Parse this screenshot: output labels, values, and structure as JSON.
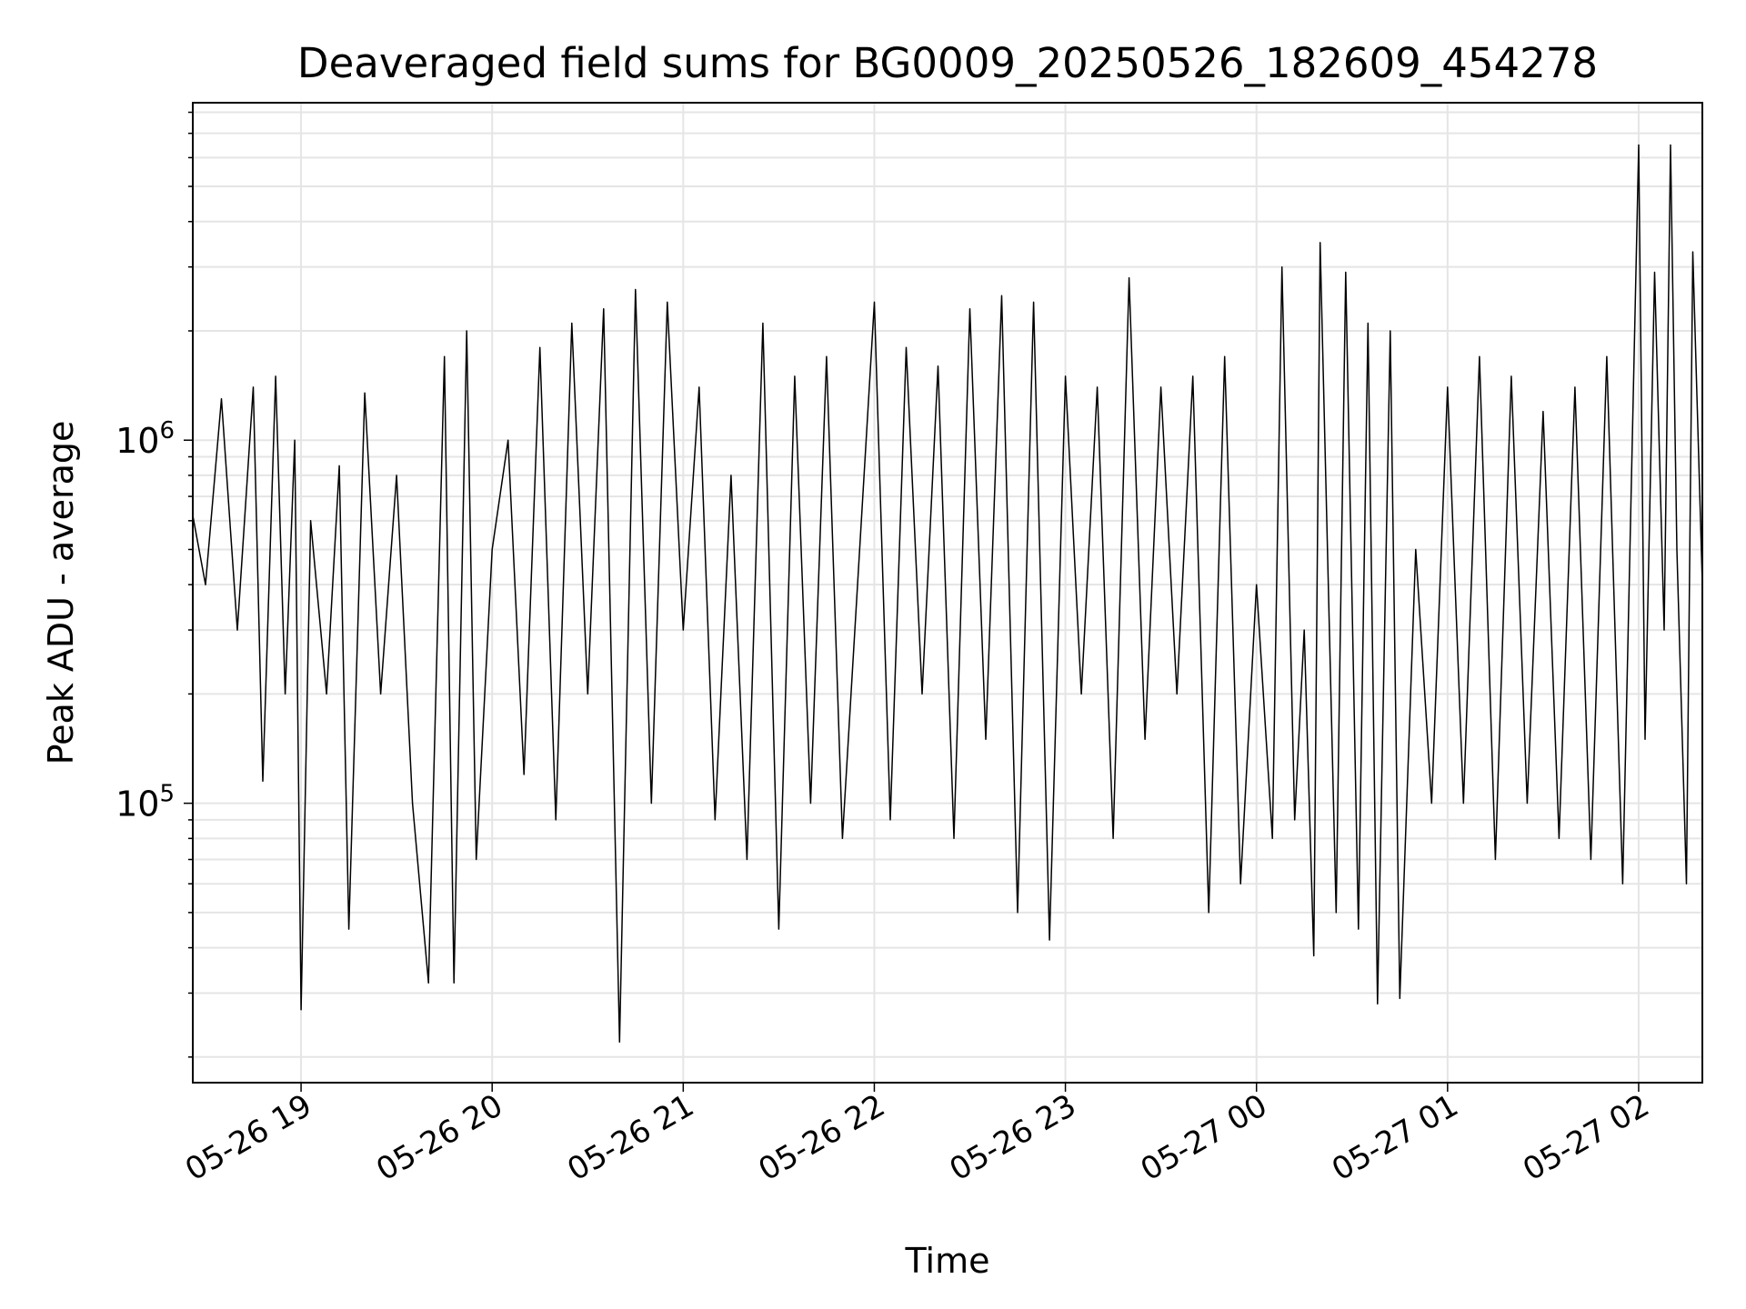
{
  "chart_data": {
    "type": "line",
    "title": "Deaveraged field sums for BG0009_20250526_182609_454278",
    "xlabel": "Time",
    "ylabel": "Peak ADU - average",
    "x_range": [
      "2025-05-26 18:26",
      "2025-05-27 02:20"
    ],
    "x_ticks": [
      {
        "value": "2025-05-26 19:00",
        "label": "05-26 19"
      },
      {
        "value": "2025-05-26 20:00",
        "label": "05-26 20"
      },
      {
        "value": "2025-05-26 21:00",
        "label": "05-26 21"
      },
      {
        "value": "2025-05-26 22:00",
        "label": "05-26 22"
      },
      {
        "value": "2025-05-26 23:00",
        "label": "05-26 23"
      },
      {
        "value": "2025-05-27 00:00",
        "label": "05-27 00"
      },
      {
        "value": "2025-05-27 01:00",
        "label": "05-27 01"
      },
      {
        "value": "2025-05-27 02:00",
        "label": "05-27 02"
      }
    ],
    "y_scale": "log",
    "ylim": [
      17000,
      8500000
    ],
    "y_major_ticks": [
      {
        "value": 100000,
        "base": "10",
        "exp": "5"
      },
      {
        "value": 1000000,
        "base": "10",
        "exp": "6"
      }
    ],
    "grid": true,
    "line_color": "#000000",
    "grid_color": "#e5e5e5",
    "series": [
      {
        "sampling_note_hidden": false,
        "points": [
          [
            "2025-05-26 18:26",
            620000
          ],
          [
            "2025-05-26 18:30",
            400000
          ],
          [
            "2025-05-26 18:35",
            1300000
          ],
          [
            "2025-05-26 18:40",
            300000
          ],
          [
            "2025-05-26 18:45",
            1400000
          ],
          [
            "2025-05-26 18:48",
            115000
          ],
          [
            "2025-05-26 18:52",
            1500000
          ],
          [
            "2025-05-26 18:55",
            200000
          ],
          [
            "2025-05-26 18:58",
            1000000
          ],
          [
            "2025-05-26 19:00",
            27000
          ],
          [
            "2025-05-26 19:03",
            600000
          ],
          [
            "2025-05-26 19:08",
            200000
          ],
          [
            "2025-05-26 19:12",
            850000
          ],
          [
            "2025-05-26 19:15",
            45000
          ],
          [
            "2025-05-26 19:20",
            1350000
          ],
          [
            "2025-05-26 19:25",
            200000
          ],
          [
            "2025-05-26 19:30",
            800000
          ],
          [
            "2025-05-26 19:35",
            100000
          ],
          [
            "2025-05-26 19:40",
            32000
          ],
          [
            "2025-05-26 19:45",
            1700000
          ],
          [
            "2025-05-26 19:48",
            32000
          ],
          [
            "2025-05-26 19:52",
            2000000
          ],
          [
            "2025-05-26 19:55",
            70000
          ],
          [
            "2025-05-26 20:00",
            500000
          ],
          [
            "2025-05-26 20:05",
            1000000
          ],
          [
            "2025-05-26 20:10",
            120000
          ],
          [
            "2025-05-26 20:15",
            1800000
          ],
          [
            "2025-05-26 20:20",
            90000
          ],
          [
            "2025-05-26 20:25",
            2100000
          ],
          [
            "2025-05-26 20:30",
            200000
          ],
          [
            "2025-05-26 20:35",
            2300000
          ],
          [
            "2025-05-26 20:40",
            22000
          ],
          [
            "2025-05-26 20:45",
            2600000
          ],
          [
            "2025-05-26 20:50",
            100000
          ],
          [
            "2025-05-26 20:55",
            2400000
          ],
          [
            "2025-05-26 21:00",
            300000
          ],
          [
            "2025-05-26 21:05",
            1400000
          ],
          [
            "2025-05-26 21:10",
            90000
          ],
          [
            "2025-05-26 21:15",
            800000
          ],
          [
            "2025-05-26 21:20",
            70000
          ],
          [
            "2025-05-26 21:25",
            2100000
          ],
          [
            "2025-05-26 21:30",
            45000
          ],
          [
            "2025-05-26 21:35",
            1500000
          ],
          [
            "2025-05-26 21:40",
            100000
          ],
          [
            "2025-05-26 21:45",
            1700000
          ],
          [
            "2025-05-26 21:50",
            80000
          ],
          [
            "2025-05-26 22:00",
            2400000
          ],
          [
            "2025-05-26 22:05",
            90000
          ],
          [
            "2025-05-26 22:10",
            1800000
          ],
          [
            "2025-05-26 22:15",
            200000
          ],
          [
            "2025-05-26 22:20",
            1600000
          ],
          [
            "2025-05-26 22:25",
            80000
          ],
          [
            "2025-05-26 22:30",
            2300000
          ],
          [
            "2025-05-26 22:35",
            150000
          ],
          [
            "2025-05-26 22:40",
            2500000
          ],
          [
            "2025-05-26 22:45",
            50000
          ],
          [
            "2025-05-26 22:50",
            2400000
          ],
          [
            "2025-05-26 22:55",
            42000
          ],
          [
            "2025-05-26 23:00",
            1500000
          ],
          [
            "2025-05-26 23:05",
            200000
          ],
          [
            "2025-05-26 23:10",
            1400000
          ],
          [
            "2025-05-26 23:15",
            80000
          ],
          [
            "2025-05-26 23:20",
            2800000
          ],
          [
            "2025-05-26 23:25",
            150000
          ],
          [
            "2025-05-26 23:30",
            1400000
          ],
          [
            "2025-05-26 23:35",
            200000
          ],
          [
            "2025-05-26 23:40",
            1500000
          ],
          [
            "2025-05-26 23:45",
            50000
          ],
          [
            "2025-05-26 23:50",
            1700000
          ],
          [
            "2025-05-26 23:55",
            60000
          ],
          [
            "2025-05-27 00:00",
            400000
          ],
          [
            "2025-05-27 00:05",
            80000
          ],
          [
            "2025-05-27 00:08",
            3000000
          ],
          [
            "2025-05-27 00:12",
            90000
          ],
          [
            "2025-05-27 00:15",
            300000
          ],
          [
            "2025-05-27 00:18",
            38000
          ],
          [
            "2025-05-27 00:20",
            3500000
          ],
          [
            "2025-05-27 00:25",
            50000
          ],
          [
            "2025-05-27 00:28",
            2900000
          ],
          [
            "2025-05-27 00:32",
            45000
          ],
          [
            "2025-05-27 00:35",
            2100000
          ],
          [
            "2025-05-27 00:38",
            28000
          ],
          [
            "2025-05-27 00:42",
            2000000
          ],
          [
            "2025-05-27 00:45",
            29000
          ],
          [
            "2025-05-27 00:50",
            500000
          ],
          [
            "2025-05-27 00:55",
            100000
          ],
          [
            "2025-05-27 01:00",
            1400000
          ],
          [
            "2025-05-27 01:05",
            100000
          ],
          [
            "2025-05-27 01:10",
            1700000
          ],
          [
            "2025-05-27 01:15",
            70000
          ],
          [
            "2025-05-27 01:20",
            1500000
          ],
          [
            "2025-05-27 01:25",
            100000
          ],
          [
            "2025-05-27 01:30",
            1200000
          ],
          [
            "2025-05-27 01:35",
            80000
          ],
          [
            "2025-05-27 01:40",
            1400000
          ],
          [
            "2025-05-27 01:45",
            70000
          ],
          [
            "2025-05-27 01:50",
            1700000
          ],
          [
            "2025-05-27 01:55",
            60000
          ],
          [
            "2025-05-27 02:00",
            6500000
          ],
          [
            "2025-05-27 02:02",
            150000
          ],
          [
            "2025-05-27 02:05",
            2900000
          ],
          [
            "2025-05-27 02:08",
            300000
          ],
          [
            "2025-05-27 02:10",
            6500000
          ],
          [
            "2025-05-27 02:12",
            500000
          ],
          [
            "2025-05-27 02:15",
            60000
          ],
          [
            "2025-05-27 02:17",
            3300000
          ],
          [
            "2025-05-27 02:20",
            400000
          ]
        ]
      }
    ]
  }
}
